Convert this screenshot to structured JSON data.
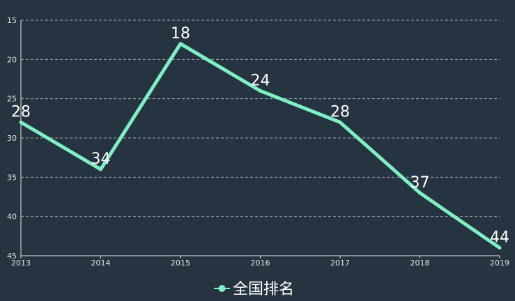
{
  "chart_data": {
    "type": "line",
    "categories": [
      "2013",
      "2014",
      "2015",
      "2016",
      "2017",
      "2018",
      "2019"
    ],
    "series": [
      {
        "name": "全国排名",
        "values": [
          28,
          34,
          18,
          24,
          28,
          37,
          44
        ]
      }
    ],
    "y_axis": {
      "inverse": true,
      "ylim": [
        15,
        45
      ],
      "ticks": [
        15,
        20,
        25,
        30,
        35,
        40,
        45
      ]
    },
    "grid": true,
    "legend_position": "bottom-center",
    "colors": {
      "line": "#7ef0c4",
      "background": "#263340",
      "text": "#e6e6e6"
    },
    "data_labels": true
  }
}
